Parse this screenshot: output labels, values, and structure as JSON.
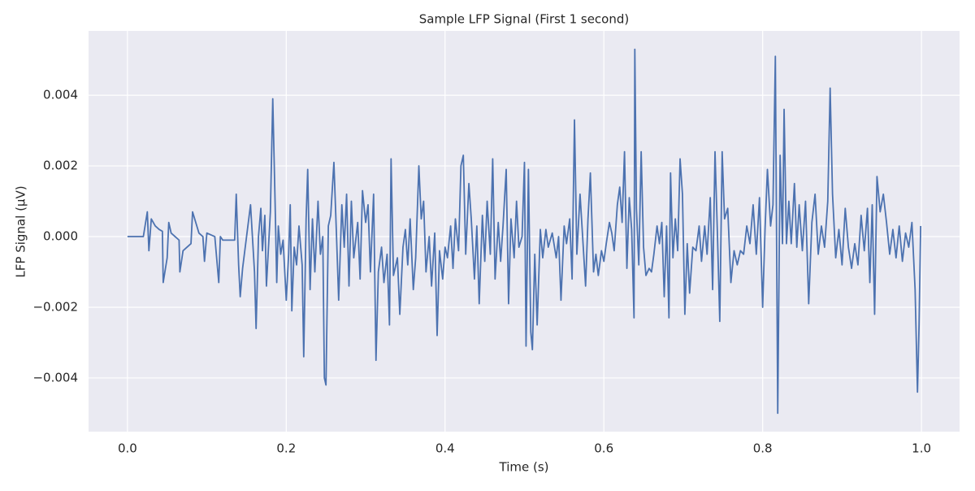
{
  "chart_data": {
    "type": "line",
    "title": "Sample LFP Signal (First 1 second)",
    "x_label": "Time (s)",
    "y_label": "LFP Signal (µV)",
    "xlim": [
      -0.049,
      1.048
    ],
    "ylim": [
      -0.00552,
      0.00582
    ],
    "xticks": [
      {
        "value": 0,
        "label": "0.0"
      },
      0.2,
      0.4,
      0.6,
      0.8,
      {
        "value": 1,
        "label": "1.0"
      }
    ],
    "yticks": [
      {
        "value": -0.004,
        "label": "−0.004"
      },
      {
        "value": -0.002,
        "label": "−0.002"
      },
      {
        "value": 0,
        "label": "0.000"
      },
      0.002,
      0.004
    ],
    "grid": true,
    "series": [
      {
        "color": "#4c72b0",
        "x": [
          0,
          0.02,
          0.025,
          0.027,
          0.03,
          0.035,
          0.04,
          0.044,
          0.045,
          0.05,
          0.052,
          0.055,
          0.06,
          0.065,
          0.066,
          0.07,
          0.08,
          0.082,
          0.09,
          0.095,
          0.097,
          0.1,
          0.11,
          0.115,
          0.117,
          0.12,
          0.135,
          0.137,
          0.14,
          0.142,
          0.145,
          0.15,
          0.155,
          0.16,
          0.162,
          0.165,
          0.168,
          0.17,
          0.173,
          0.175,
          0.18,
          0.183,
          0.186,
          0.188,
          0.19,
          0.193,
          0.196,
          0.2,
          0.203,
          0.205,
          0.207,
          0.21,
          0.213,
          0.216,
          0.22,
          0.222,
          0.225,
          0.227,
          0.23,
          0.233,
          0.236,
          0.24,
          0.243,
          0.246,
          0.248,
          0.25,
          0.253,
          0.256,
          0.26,
          0.263,
          0.266,
          0.27,
          0.273,
          0.276,
          0.279,
          0.282,
          0.285,
          0.29,
          0.293,
          0.296,
          0.3,
          0.303,
          0.306,
          0.31,
          0.313,
          0.316,
          0.32,
          0.323,
          0.327,
          0.33,
          0.332,
          0.335,
          0.34,
          0.343,
          0.347,
          0.35,
          0.353,
          0.356,
          0.36,
          0.363,
          0.367,
          0.37,
          0.373,
          0.376,
          0.38,
          0.383,
          0.387,
          0.39,
          0.393,
          0.397,
          0.4,
          0.403,
          0.407,
          0.41,
          0.413,
          0.417,
          0.42,
          0.423,
          0.426,
          0.43,
          0.433,
          0.437,
          0.44,
          0.443,
          0.447,
          0.45,
          0.453,
          0.457,
          0.46,
          0.463,
          0.467,
          0.47,
          0.473,
          0.477,
          0.48,
          0.483,
          0.487,
          0.49,
          0.493,
          0.497,
          0.5,
          0.502,
          0.505,
          0.508,
          0.51,
          0.513,
          0.516,
          0.52,
          0.523,
          0.527,
          0.53,
          0.535,
          0.54,
          0.543,
          0.546,
          0.55,
          0.553,
          0.557,
          0.56,
          0.563,
          0.566,
          0.57,
          0.573,
          0.577,
          0.58,
          0.583,
          0.587,
          0.59,
          0.593,
          0.597,
          0.6,
          0.603,
          0.607,
          0.61,
          0.613,
          0.617,
          0.62,
          0.623,
          0.626,
          0.629,
          0.632,
          0.635,
          0.638,
          0.639,
          0.641,
          0.644,
          0.647,
          0.65,
          0.653,
          0.657,
          0.66,
          0.663,
          0.667,
          0.67,
          0.673,
          0.676,
          0.679,
          0.682,
          0.684,
          0.687,
          0.69,
          0.693,
          0.696,
          0.699,
          0.702,
          0.705,
          0.708,
          0.712,
          0.716,
          0.72,
          0.723,
          0.727,
          0.73,
          0.734,
          0.737,
          0.74,
          0.743,
          0.746,
          0.749,
          0.752,
          0.756,
          0.76,
          0.764,
          0.768,
          0.772,
          0.776,
          0.78,
          0.784,
          0.788,
          0.792,
          0.796,
          0.8,
          0.803,
          0.806,
          0.81,
          0.813,
          0.816,
          0.819,
          0.822,
          0.825,
          0.827,
          0.83,
          0.833,
          0.836,
          0.84,
          0.843,
          0.846,
          0.85,
          0.854,
          0.858,
          0.862,
          0.866,
          0.87,
          0.874,
          0.878,
          0.882,
          0.885,
          0.888,
          0.892,
          0.896,
          0.9,
          0.904,
          0.908,
          0.912,
          0.916,
          0.92,
          0.924,
          0.928,
          0.932,
          0.935,
          0.938,
          0.941,
          0.944,
          0.948,
          0.952,
          0.956,
          0.96,
          0.964,
          0.968,
          0.972,
          0.976,
          0.98,
          0.984,
          0.988,
          0.992,
          0.995,
          0.997,
          0.999
        ],
        "values": [
          0,
          0,
          0.0007,
          -0.0004,
          0.0005,
          0.0003,
          0.0002,
          0.00015,
          -0.0013,
          -0.0006,
          0.0004,
          0.0001,
          0,
          -0.0001,
          -0.001,
          -0.0004,
          -0.0002,
          0.0007,
          0.0001,
          0,
          -0.0007,
          0.0001,
          0,
          -0.0013,
          0,
          -0.0001,
          -0.0001,
          0.0012,
          -0.0008,
          -0.0017,
          -0.0009,
          0,
          0.0009,
          -0.001,
          -0.0026,
          0,
          0.0008,
          -0.0004,
          0.0006,
          -0.0014,
          0.0007,
          0.0039,
          0.0009,
          -0.0013,
          0.0003,
          -0.0005,
          -0.0001,
          -0.0018,
          -0.0005,
          0.0009,
          -0.0021,
          -0.0003,
          -0.0008,
          0.0003,
          -0.0008,
          -0.0034,
          0.0005,
          0.0019,
          -0.0015,
          0.0005,
          -0.001,
          0.001,
          -0.0005,
          0,
          -0.004,
          -0.0042,
          0.0003,
          0.0006,
          0.0021,
          0.0002,
          -0.0018,
          0.0009,
          -0.0003,
          0.0012,
          -0.0014,
          0.001,
          -0.0006,
          0.0004,
          -0.0012,
          0.0013,
          0.0004,
          0.0009,
          -0.001,
          0.0012,
          -0.0035,
          -0.001,
          -0.0003,
          -0.0013,
          -0.0005,
          -0.0025,
          0.0022,
          -0.0011,
          -0.0006,
          -0.0022,
          -0.0003,
          0.0002,
          -0.0008,
          0.0005,
          -0.0015,
          -0.0006,
          0.002,
          0.0005,
          0.001,
          -0.001,
          0,
          -0.0014,
          0.0001,
          -0.0028,
          -0.0004,
          -0.0012,
          -0.0003,
          -0.0006,
          0.0003,
          -0.0009,
          0.0005,
          -0.0004,
          0.002,
          0.0023,
          -0.0005,
          0.0015,
          0.0005,
          -0.0012,
          0.0003,
          -0.0019,
          0.0006,
          -0.0007,
          0.001,
          -0.0005,
          0.0022,
          -0.0012,
          0.0004,
          -0.0007,
          0.0003,
          0.0019,
          -0.0019,
          0.0005,
          -0.0006,
          0.001,
          -0.0003,
          0,
          0.0021,
          -0.0031,
          0.0019,
          -0.0027,
          -0.0032,
          -0.0005,
          -0.0025,
          0.0002,
          -0.0006,
          0.0002,
          -0.0003,
          0.0001,
          -0.0006,
          0,
          -0.0018,
          0.0003,
          -0.0002,
          0.0005,
          -0.0012,
          0.0033,
          -0.0005,
          0.0012,
          0.0001,
          -0.0014,
          0.0005,
          0.0018,
          -0.001,
          -0.0005,
          -0.0011,
          -0.0004,
          -0.0007,
          -0.0002,
          0.0004,
          0.0001,
          -0.0004,
          0.0009,
          0.0014,
          0.0004,
          0.0024,
          -0.0009,
          0.0011,
          0.0002,
          -0.0023,
          0.0053,
          0.0008,
          -0.0008,
          0.0024,
          -0.0003,
          -0.0011,
          -0.0009,
          -0.001,
          -0.0005,
          0.0003,
          -0.0002,
          0.0004,
          -0.0017,
          0.0003,
          -0.0023,
          0.0018,
          -0.0006,
          0.0005,
          -0.0004,
          0.0022,
          0.0012,
          -0.0022,
          -0.0002,
          -0.0016,
          -0.0003,
          -0.0004,
          0.0003,
          -0.0007,
          0.0003,
          -0.0005,
          0.0011,
          -0.0015,
          0.0024,
          0.0001,
          -0.0024,
          0.0024,
          0.0005,
          0.0008,
          -0.0013,
          -0.0004,
          -0.0008,
          -0.0004,
          -0.0005,
          0.0003,
          -0.0002,
          0.0009,
          -0.0005,
          0.0011,
          -0.002,
          0.0002,
          0.0019,
          0.0003,
          0.0009,
          0.0051,
          -0.005,
          0.0023,
          -0.0002,
          0.0036,
          -0.0002,
          0.001,
          -0.0002,
          0.0015,
          -0.0003,
          0.0009,
          -0.0004,
          0.001,
          -0.0019,
          0.0004,
          0.0012,
          -0.0005,
          0.0003,
          -0.0003,
          0.001,
          0.0042,
          0.0012,
          -0.0006,
          0.0002,
          -0.0008,
          0.0008,
          -0.0003,
          -0.0009,
          -0.0002,
          -0.0008,
          0.0006,
          -0.0004,
          0.0008,
          -0.0013,
          0.0009,
          -0.0022,
          0.0017,
          0.0007,
          0.0012,
          0.0004,
          -0.0005,
          0.0002,
          -0.0006,
          0.0003,
          -0.0007,
          0.0001,
          -0.0003,
          0.0004,
          -0.0015,
          -0.0044,
          -0.0025,
          0.0003
        ]
      }
    ]
  }
}
